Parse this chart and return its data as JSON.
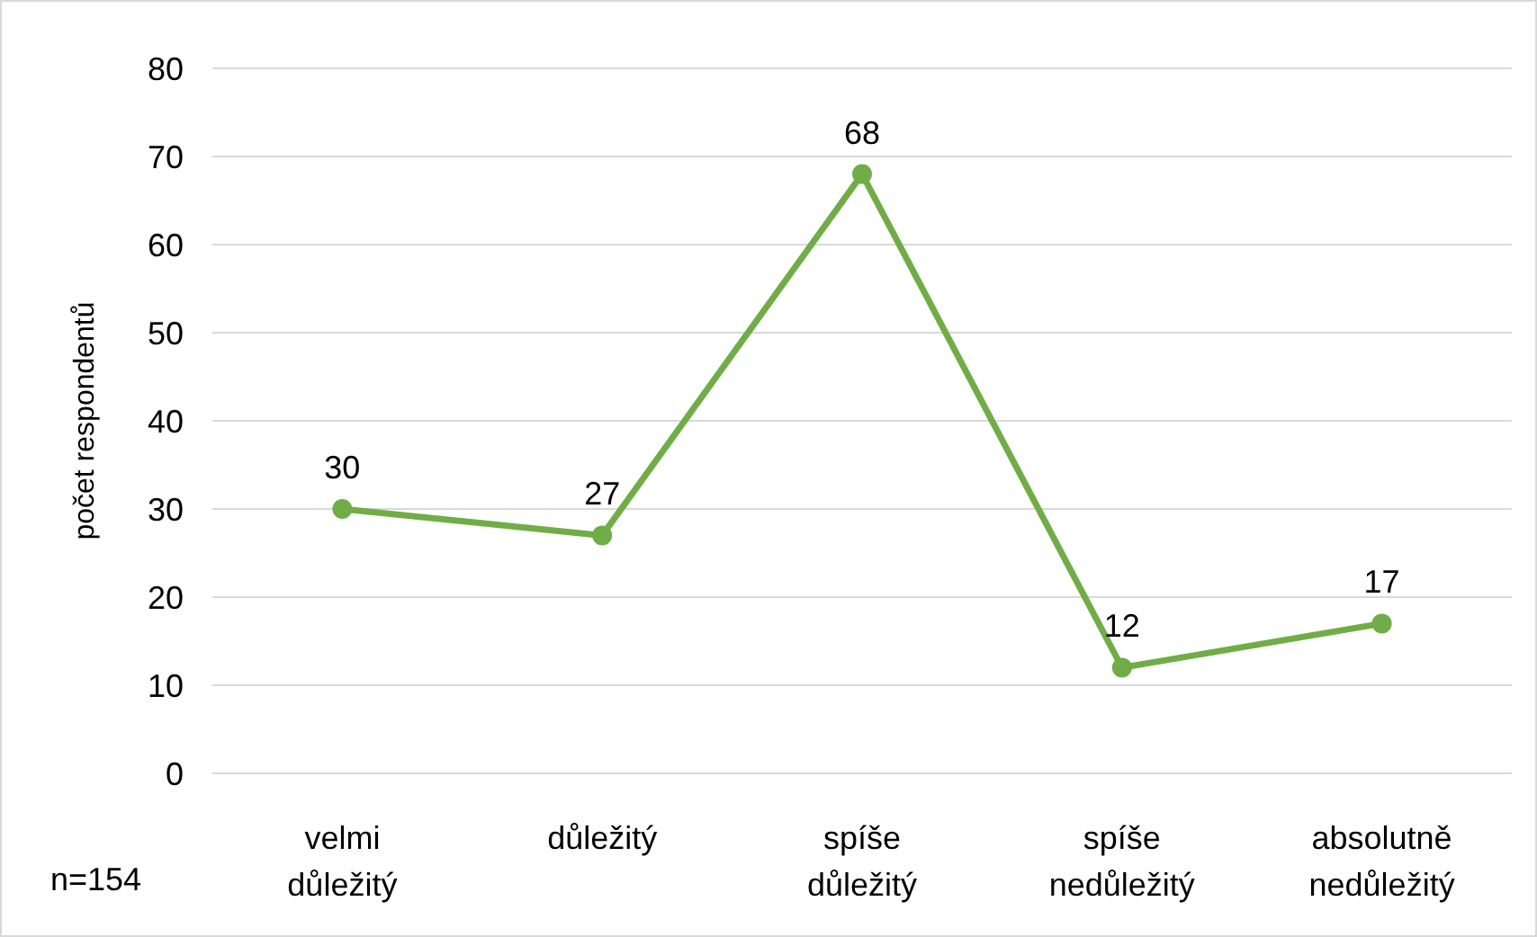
{
  "chart_data": {
    "type": "line",
    "ylabel": "počet respondentů",
    "categories": [
      "velmi důležitý",
      "důležitý",
      "spíše důležitý",
      "spíše nedůležitý",
      "absolutně nedůležitý"
    ],
    "series": [
      {
        "color": "#70ad47",
        "values": [
          30,
          27,
          68,
          12,
          17
        ]
      }
    ],
    "ylim": [
      0,
      80
    ],
    "yticks": [
      0,
      10,
      20,
      30,
      40,
      50,
      60,
      70,
      80
    ],
    "grid": "y",
    "data_labels": true,
    "marker": "circle",
    "annotations": [
      "n=154"
    ]
  }
}
